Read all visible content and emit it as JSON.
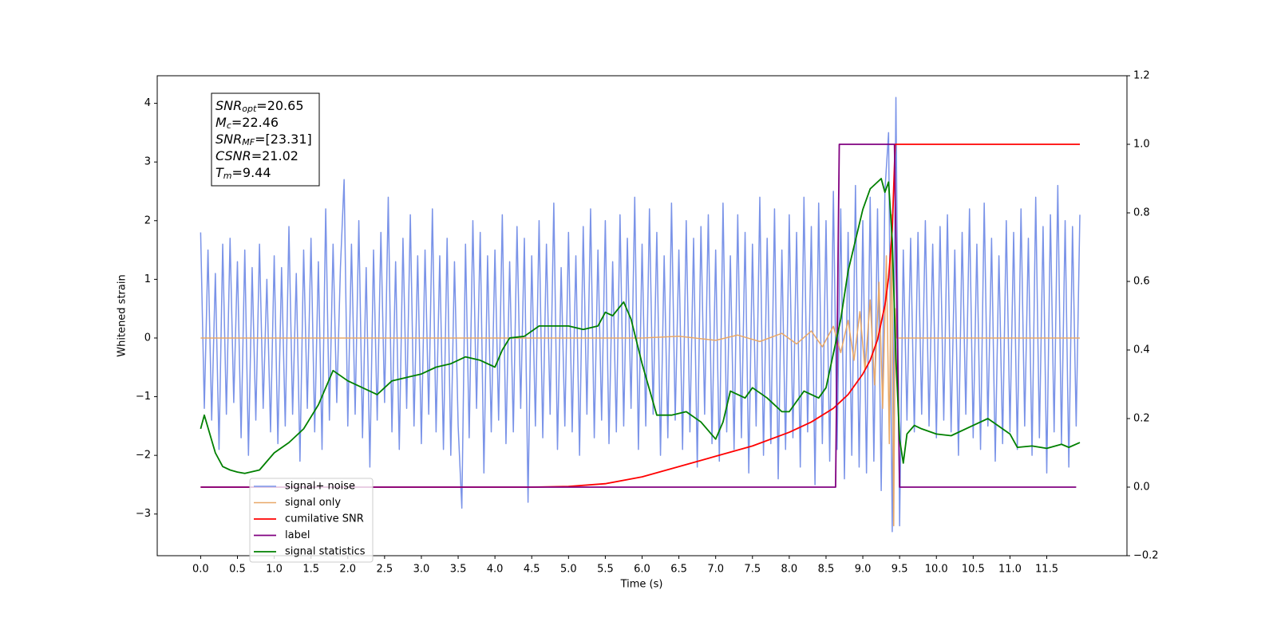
{
  "chart_data": {
    "type": "line",
    "xlabel": "Time (s)",
    "ylabel": "Whitened strain",
    "xlim": [
      -0.59,
      12.59
    ],
    "ylim": [
      -3.71,
      4.47
    ],
    "y2lim": [
      -0.2,
      1.2
    ],
    "xticks": [
      {
        "value": 0,
        "label": "0.0"
      },
      0.5,
      {
        "value": 1,
        "label": "1.0"
      },
      1.5,
      {
        "value": 2,
        "label": "2.0"
      },
      2.5,
      {
        "value": 3,
        "label": "3.0"
      },
      3.5,
      {
        "value": 4,
        "label": "4.0"
      },
      4.5,
      {
        "value": 5,
        "label": "5.0"
      },
      5.5,
      {
        "value": 6,
        "label": "6.0"
      },
      6.5,
      {
        "value": 7,
        "label": "7.0"
      },
      7.5,
      {
        "value": 8,
        "label": "8.0"
      },
      8.5,
      {
        "value": 9,
        "label": "9.0"
      },
      9.5,
      {
        "value": 10,
        "label": "10.0"
      },
      10.5,
      {
        "value": 11,
        "label": "11.0"
      },
      11.5
    ],
    "yticks": [
      {
        "value": -3,
        "label": "−3"
      },
      {
        "value": -2,
        "label": "−2"
      },
      {
        "value": -1,
        "label": "−1"
      },
      0,
      1,
      2,
      3,
      4
    ],
    "y2ticks": [
      {
        "value": -0.2,
        "label": "−0.2"
      },
      {
        "value": 0,
        "label": "0.0"
      },
      0.2,
      0.4,
      0.6,
      0.8,
      {
        "value": 1,
        "label": "1.0"
      },
      1.2
    ],
    "annotations": [
      {
        "symbol": "SNR",
        "sub": "opt",
        "value": "=20.65"
      },
      {
        "symbol": "M",
        "sub": "c",
        "value": "=22.46"
      },
      {
        "symbol": "SNR",
        "sub": "MF",
        "value": "=[23.31]"
      },
      {
        "symbol": "CSNR",
        "value": "=21.02"
      },
      {
        "symbol": "T",
        "sub": "m",
        "value": "=9.44"
      }
    ],
    "legend": "lower left",
    "series": [
      {
        "name": "signal+ noise",
        "color": "#7a93e8",
        "width": 1.5,
        "x": [
          0.0,
          0.05,
          0.1,
          0.15,
          0.2,
          0.25,
          0.3,
          0.35,
          0.4,
          0.45,
          0.5,
          0.55,
          0.6,
          0.65,
          0.7,
          0.75,
          0.8,
          0.85,
          0.9,
          0.95,
          1.0,
          1.05,
          1.1,
          1.15,
          1.2,
          1.25,
          1.3,
          1.35,
          1.4,
          1.45,
          1.5,
          1.55,
          1.6,
          1.65,
          1.7,
          1.75,
          1.8,
          1.85,
          1.9,
          1.95,
          2.0,
          2.05,
          2.1,
          2.15,
          2.2,
          2.25,
          2.3,
          2.35,
          2.4,
          2.45,
          2.5,
          2.55,
          2.6,
          2.65,
          2.7,
          2.75,
          2.8,
          2.85,
          2.9,
          2.95,
          3.0,
          3.05,
          3.1,
          3.15,
          3.2,
          3.25,
          3.3,
          3.35,
          3.4,
          3.45,
          3.5,
          3.55,
          3.6,
          3.65,
          3.7,
          3.75,
          3.8,
          3.85,
          3.9,
          3.95,
          4.0,
          4.05,
          4.1,
          4.15,
          4.2,
          4.25,
          4.3,
          4.35,
          4.4,
          4.45,
          4.5,
          4.55,
          4.6,
          4.65,
          4.7,
          4.75,
          4.8,
          4.85,
          4.9,
          4.95,
          5.0,
          5.05,
          5.1,
          5.15,
          5.2,
          5.25,
          5.3,
          5.35,
          5.4,
          5.45,
          5.5,
          5.55,
          5.6,
          5.65,
          5.7,
          5.75,
          5.8,
          5.85,
          5.9,
          5.95,
          6.0,
          6.05,
          6.1,
          6.15,
          6.2,
          6.25,
          6.3,
          6.35,
          6.4,
          6.45,
          6.5,
          6.55,
          6.6,
          6.65,
          6.7,
          6.75,
          6.8,
          6.85,
          6.9,
          6.95,
          7.0,
          7.05,
          7.1,
          7.15,
          7.2,
          7.25,
          7.3,
          7.35,
          7.4,
          7.45,
          7.5,
          7.55,
          7.6,
          7.65,
          7.7,
          7.75,
          7.8,
          7.85,
          7.9,
          7.95,
          8.0,
          8.05,
          8.1,
          8.15,
          8.2,
          8.25,
          8.3,
          8.35,
          8.4,
          8.45,
          8.5,
          8.55,
          8.6,
          8.65,
          8.7,
          8.75,
          8.8,
          8.85,
          8.9,
          8.95,
          9.0,
          9.05,
          9.1,
          9.15,
          9.2,
          9.25,
          9.3,
          9.35,
          9.4,
          9.45,
          9.5,
          9.55,
          9.6,
          9.65,
          9.7,
          9.75,
          9.8,
          9.85,
          9.9,
          9.95,
          10.0,
          10.05,
          10.1,
          10.15,
          10.2,
          10.25,
          10.3,
          10.35,
          10.4,
          10.45,
          10.5,
          10.55,
          10.6,
          10.65,
          10.7,
          10.75,
          10.8,
          10.85,
          10.9,
          10.95,
          11.0,
          11.05,
          11.1,
          11.15,
          11.2,
          11.25,
          11.3,
          11.35,
          11.4,
          11.45,
          11.5,
          11.55,
          11.6,
          11.65,
          11.7,
          11.75,
          11.8,
          11.85,
          11.9,
          11.95
        ],
        "values": [
          1.8,
          -1.2,
          1.5,
          -1.4,
          1.1,
          -1.9,
          1.6,
          -1.3,
          1.7,
          -1.1,
          1.3,
          -1.7,
          1.5,
          -2.0,
          1.2,
          -1.4,
          1.6,
          -1.2,
          1.0,
          -1.6,
          1.4,
          -1.8,
          1.2,
          -1.5,
          1.9,
          -1.3,
          1.1,
          -2.1,
          1.5,
          -1.2,
          1.7,
          -1.6,
          1.3,
          -1.9,
          2.2,
          -1.4,
          1.6,
          -1.1,
          1.2,
          2.7,
          -1.5,
          1.6,
          -1.3,
          2.0,
          -1.7,
          1.2,
          -2.2,
          1.5,
          -1.4,
          1.8,
          -1.1,
          2.4,
          -1.6,
          1.3,
          -1.9,
          1.7,
          -1.2,
          2.1,
          -1.5,
          1.4,
          -1.8,
          1.5,
          -1.3,
          2.2,
          -1.6,
          1.4,
          -1.9,
          1.7,
          -2.0,
          1.3,
          -1.5,
          -2.9,
          1.6,
          -1.7,
          2.0,
          -1.2,
          1.8,
          -2.3,
          1.4,
          -1.6,
          1.5,
          -1.4,
          2.1,
          -1.8,
          1.3,
          -1.6,
          1.9,
          -1.2,
          1.7,
          -2.8,
          1.4,
          -1.5,
          2.0,
          -1.7,
          1.6,
          -1.3,
          2.3,
          -1.9,
          1.2,
          -1.5,
          1.8,
          -1.6,
          1.4,
          -2.0,
          1.9,
          -1.3,
          2.2,
          -1.7,
          1.5,
          -1.4,
          2.0,
          -1.8,
          1.3,
          -1.6,
          2.1,
          -1.5,
          1.7,
          -1.2,
          2.4,
          -1.9,
          1.6,
          -1.5,
          2.2,
          -1.3,
          1.8,
          -2.0,
          1.4,
          -1.7,
          2.3,
          -1.4,
          1.5,
          -1.9,
          2.0,
          -1.6,
          1.7,
          -2.2,
          1.9,
          -1.3,
          2.1,
          -1.8,
          1.5,
          -2.1,
          2.3,
          -1.6,
          1.4,
          -1.9,
          2.1,
          -1.7,
          1.8,
          -2.3,
          1.6,
          -1.5,
          2.4,
          -2.0,
          1.7,
          -1.8,
          2.2,
          -2.4,
          1.5,
          -1.9,
          2.1,
          -1.7,
          1.8,
          -2.2,
          2.4,
          -1.6,
          1.9,
          -2.5,
          2.3,
          -1.8,
          2.0,
          -2.1,
          2.5,
          -1.9,
          2.2,
          -2.4,
          1.8,
          -2.0,
          2.6,
          -2.2,
          2.0,
          -2.3,
          2.4,
          -2.1,
          2.2,
          -2.6,
          2.5,
          3.5,
          -3.3,
          4.1,
          -3.2,
          1.5,
          -1.4,
          1.7,
          -1.6,
          1.8,
          -1.3,
          2.0,
          -1.5,
          1.6,
          -1.7,
          1.9,
          -1.4,
          2.1,
          -1.6,
          1.5,
          -2.0,
          1.8,
          -1.3,
          2.2,
          -1.7,
          1.6,
          -1.9,
          2.3,
          -1.5,
          1.7,
          -2.1,
          1.4,
          -1.8,
          2.0,
          -1.6,
          1.8,
          -1.9,
          2.2,
          -1.5,
          1.7,
          -2.0,
          2.4,
          -1.7,
          1.9,
          -2.3,
          2.1,
          -1.6,
          2.6,
          -1.8,
          2.0,
          -2.2,
          1.9,
          -1.5,
          2.1
        ]
      },
      {
        "name": "signal only",
        "color": "#e8a868",
        "width": 1.5,
        "x": [
          0,
          6.0,
          6.5,
          7.0,
          7.3,
          7.6,
          7.9,
          8.1,
          8.3,
          8.45,
          8.6,
          8.7,
          8.8,
          8.88,
          8.96,
          9.03,
          9.1,
          9.16,
          9.22,
          9.27,
          9.32,
          9.36,
          9.39,
          9.42,
          9.44,
          9.46,
          9.5,
          11.95
        ],
        "values": [
          0,
          0,
          0.03,
          -0.04,
          0.05,
          -0.06,
          0.08,
          -0.1,
          0.12,
          -0.15,
          0.2,
          -0.25,
          0.3,
          -0.38,
          0.45,
          -0.55,
          0.65,
          -0.8,
          0.95,
          -1.2,
          1.4,
          -1.8,
          2.1,
          -3.2,
          0.5,
          0,
          0,
          0
        ]
      },
      {
        "name": "cumilative SNR",
        "color": "#ff0000",
        "width": 1.8,
        "axis": "y2",
        "x": [
          0,
          4.5,
          5,
          5.5,
          6,
          6.5,
          7,
          7.5,
          8,
          8.3,
          8.6,
          8.8,
          9.0,
          9.1,
          9.2,
          9.3,
          9.35,
          9.4,
          9.44,
          9.45,
          11.95
        ],
        "values": [
          0,
          0,
          0.002,
          0.01,
          0.03,
          0.06,
          0.09,
          0.12,
          0.16,
          0.19,
          0.23,
          0.27,
          0.33,
          0.37,
          0.43,
          0.53,
          0.61,
          0.75,
          1.0,
          1.0,
          1.0
        ]
      },
      {
        "name": "label",
        "color": "#800080",
        "width": 1.8,
        "axis": "y2",
        "x": [
          0,
          8.63,
          8.68,
          9.43,
          9.5,
          11.9
        ],
        "values": [
          0,
          0,
          1,
          1,
          0,
          0
        ]
      },
      {
        "name": "signal statistics",
        "color": "#008000",
        "width": 1.8,
        "axis": "y2",
        "x": [
          0,
          0.05,
          0.2,
          0.3,
          0.4,
          0.5,
          0.6,
          0.8,
          1.0,
          1.2,
          1.4,
          1.6,
          1.8,
          2.0,
          2.2,
          2.4,
          2.6,
          2.8,
          3.0,
          3.2,
          3.4,
          3.6,
          3.8,
          4.0,
          4.1,
          4.2,
          4.4,
          4.6,
          4.8,
          5.0,
          5.2,
          5.4,
          5.5,
          5.6,
          5.75,
          5.85,
          6.0,
          6.2,
          6.4,
          6.6,
          6.8,
          7.0,
          7.1,
          7.2,
          7.4,
          7.5,
          7.7,
          7.9,
          8.0,
          8.2,
          8.4,
          8.5,
          8.7,
          8.8,
          8.9,
          9.0,
          9.1,
          9.25,
          9.3,
          9.35,
          9.4,
          9.45,
          9.5,
          9.55,
          9.6,
          9.7,
          9.8,
          10.0,
          10.2,
          10.5,
          10.7,
          11.0,
          11.1,
          11.3,
          11.5,
          11.7,
          11.8,
          11.95
        ],
        "values": [
          0.17,
          0.21,
          0.1,
          0.06,
          0.05,
          0.044,
          0.04,
          0.05,
          0.1,
          0.13,
          0.17,
          0.24,
          0.34,
          0.31,
          0.29,
          0.27,
          0.31,
          0.32,
          0.33,
          0.35,
          0.36,
          0.38,
          0.37,
          0.35,
          0.4,
          0.435,
          0.44,
          0.47,
          0.47,
          0.47,
          0.46,
          0.47,
          0.51,
          0.5,
          0.54,
          0.49,
          0.36,
          0.21,
          0.21,
          0.22,
          0.19,
          0.14,
          0.19,
          0.28,
          0.26,
          0.29,
          0.26,
          0.22,
          0.22,
          0.28,
          0.26,
          0.29,
          0.49,
          0.63,
          0.72,
          0.81,
          0.87,
          0.9,
          0.86,
          0.89,
          0.72,
          0.375,
          0.14,
          0.07,
          0.155,
          0.18,
          0.17,
          0.155,
          0.15,
          0.18,
          0.2,
          0.155,
          0.116,
          0.12,
          0.113,
          0.125,
          0.116,
          0.13
        ]
      }
    ]
  }
}
